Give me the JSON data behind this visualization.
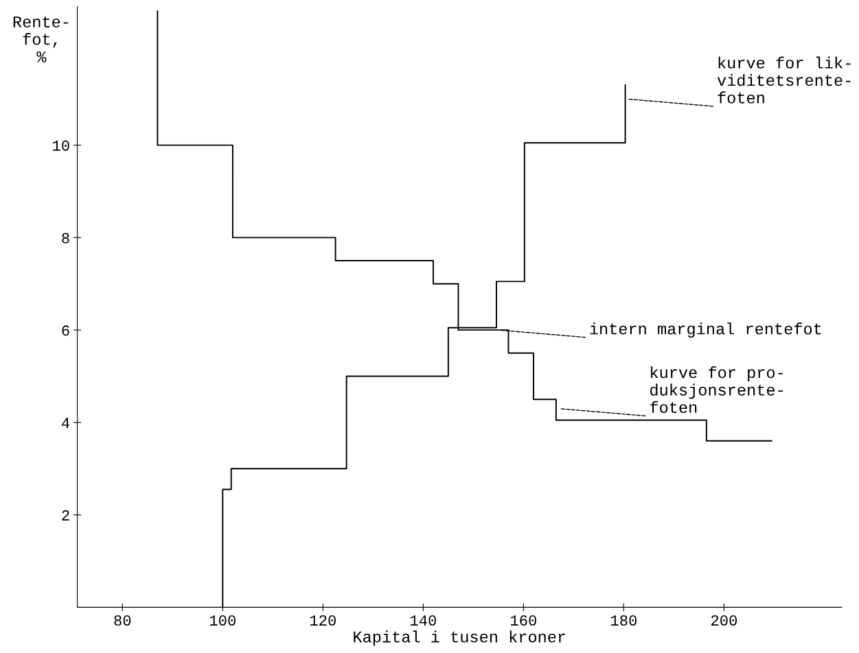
{
  "chart_data": {
    "type": "step",
    "xlabel": "Kapital i tusen kroner",
    "ylabel": "Rente-\nfot,\n%",
    "xlim": [
      71,
      223.5
    ],
    "ylim": [
      0,
      13
    ],
    "xticks": [
      80,
      100,
      120,
      140,
      160,
      180,
      200
    ],
    "yticks": [
      2,
      4,
      6,
      8,
      10
    ],
    "grid": false,
    "line_style": "solid",
    "marker": "none",
    "series": [
      {
        "color": "#000000",
        "x": [
          87,
          87,
          102,
          122.5,
          142,
          147,
          157,
          162,
          166.5,
          196.5,
          209.5
        ],
        "values": [
          12.9,
          10,
          8,
          7.5,
          7,
          6,
          5.5,
          4.5,
          4.05,
          3.6,
          3.6
        ]
      },
      {
        "color": "#000000",
        "x": [
          100,
          100,
          101.7,
          124.7,
          145,
          154.6,
          160.2,
          180.3
        ],
        "values": [
          0,
          2.55,
          3,
          5,
          6.05,
          7.05,
          10.05,
          11.3
        ]
      }
    ],
    "annotations": [
      {
        "text": "kurve for lik-\nviditetsrente-\nfoten",
        "x": 180.5,
        "y": 11
      },
      {
        "text": "intern marginal rentefot",
        "x": 155,
        "y": 6
      },
      {
        "text": "kurve for pro-\nduksjonsrente-\nfoten",
        "x": 167,
        "y": 4.3
      }
    ]
  }
}
